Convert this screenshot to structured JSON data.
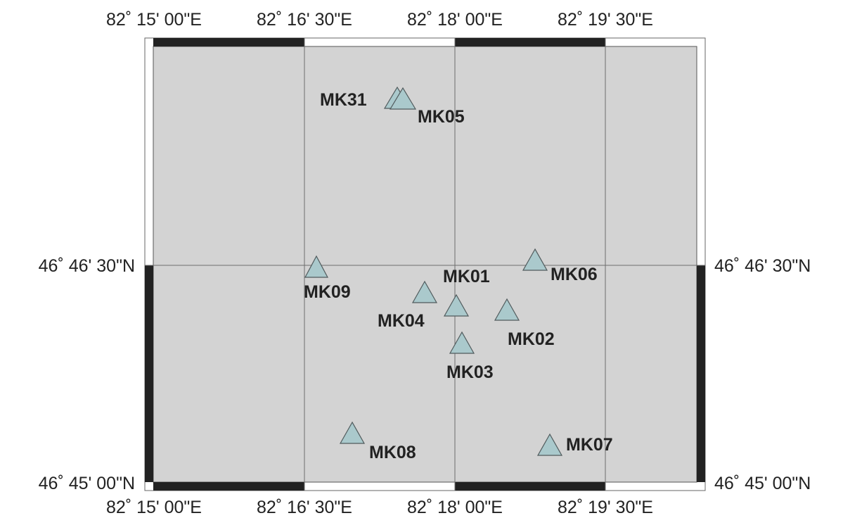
{
  "map": {
    "lon_labels": [
      "82˚ 15' 00\"E",
      "82˚ 16' 30\"E",
      "82˚ 18' 00\"E",
      "82˚ 19' 30\"E"
    ],
    "lat_labels": [
      "46˚ 45' 00\"N",
      "46˚ 46' 30\"N"
    ],
    "colors": {
      "land": "#d3d3d3",
      "frame": "#222222",
      "grid": "#6e6e6e",
      "marker_fill": "#aac9cc",
      "marker_stroke": "#505a5c"
    },
    "marker_icon": "triangle-icon",
    "stations": [
      {
        "label": "MK31"
      },
      {
        "label": "MK05"
      },
      {
        "label": "MK09"
      },
      {
        "label": "MK01"
      },
      {
        "label": "MK06"
      },
      {
        "label": "MK04"
      },
      {
        "label": "MK02"
      },
      {
        "label": "MK03"
      },
      {
        "label": "MK08"
      },
      {
        "label": "MK07"
      }
    ]
  }
}
